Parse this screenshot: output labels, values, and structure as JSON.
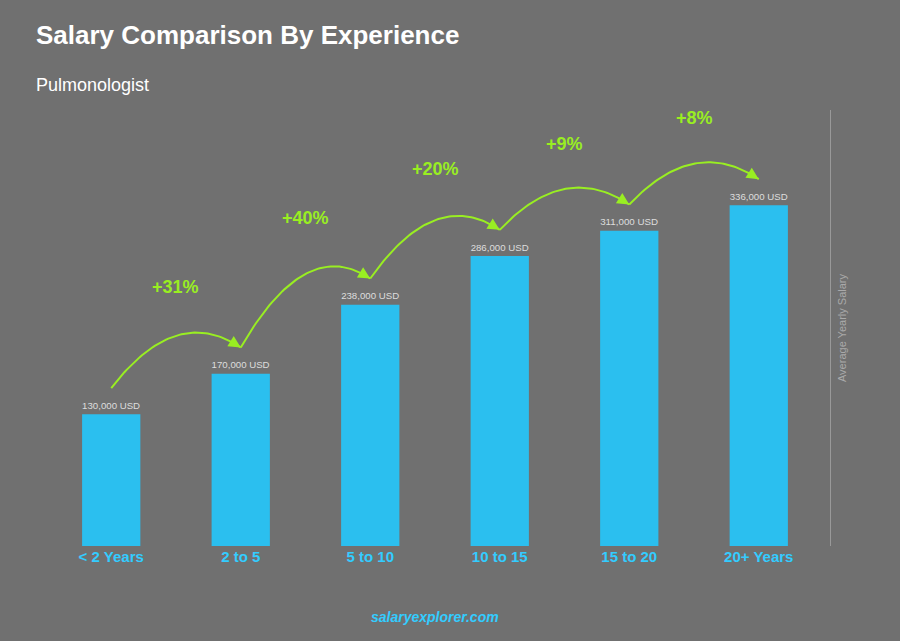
{
  "chart_data": {
    "type": "bar",
    "title": "Salary Comparison By Experience",
    "subtitle": "Pulmonologist",
    "ylabel": "Average Yearly Salary",
    "categories": [
      "< 2 Years",
      "2 to 5",
      "5 to 10",
      "10 to 15",
      "15 to 20",
      "20+ Years"
    ],
    "values": [
      130000,
      170000,
      238000,
      286000,
      311000,
      336000
    ],
    "value_labels": [
      "130,000 USD",
      "170,000 USD",
      "238,000 USD",
      "286,000 USD",
      "311,000 USD",
      "336,000 USD"
    ],
    "data_labels": true,
    "color": "#2bbfef",
    "ylim": [
      0,
      430000
    ],
    "tick_labels": "x",
    "grid": false,
    "annotations": [
      {
        "text": "+31%",
        "from": "< 2 Years",
        "to": "2 to 5"
      },
      {
        "text": "+40%",
        "from": "2 to 5",
        "to": "5 to 10"
      },
      {
        "text": "+20%",
        "from": "5 to 10",
        "to": "10 to 15"
      },
      {
        "text": "+9%",
        "from": "10 to 15",
        "to": "15 to 20"
      },
      {
        "text": "+8%",
        "from": "15 to 20",
        "to": "20+ Years"
      },
      {
        "text": "salaryexplorer.com"
      }
    ]
  }
}
